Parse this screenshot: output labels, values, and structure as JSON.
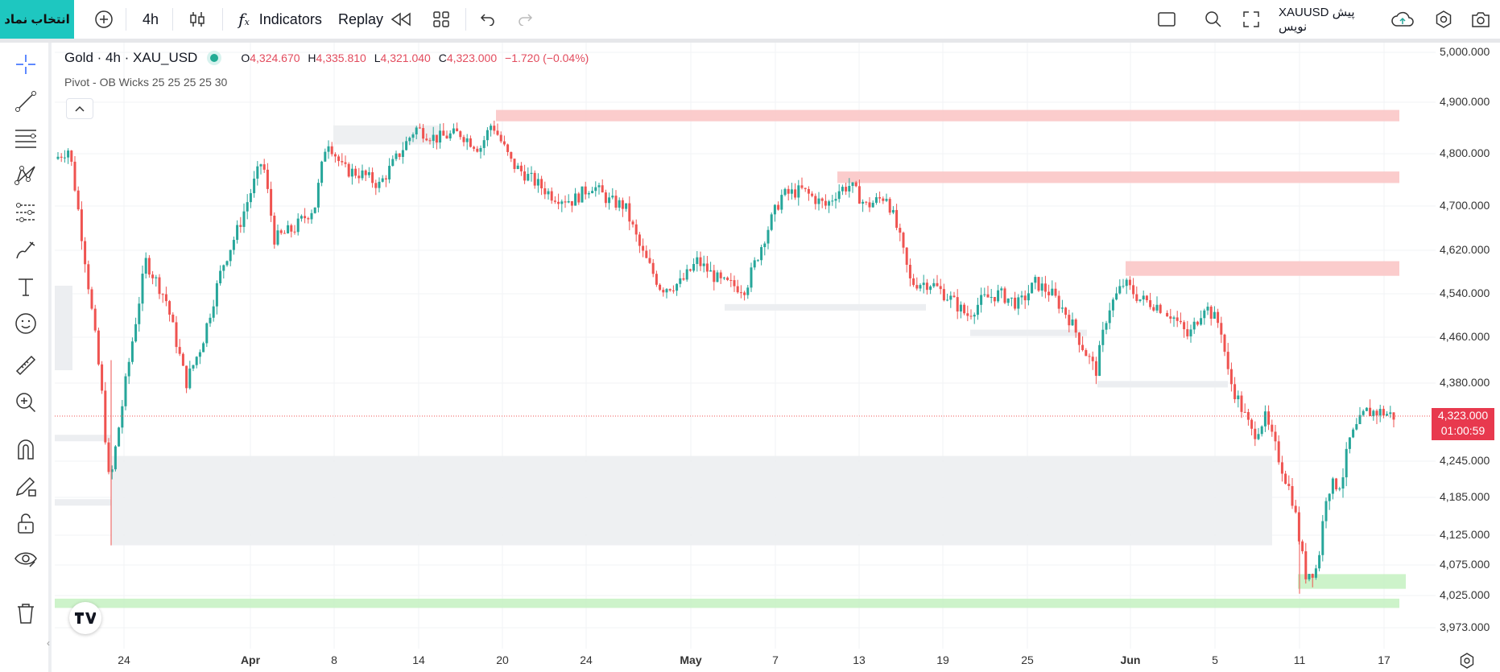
{
  "toolbar": {
    "symbol_button": "انتخاب نماد",
    "interval": "4h",
    "indicators_label": "Indicators",
    "replay_label": "Replay",
    "draft_label": "XAUUSD پیش نویس"
  },
  "legend": {
    "title": "Gold · 4h · XAU_USD",
    "open_key": "O",
    "open": "4,324.670",
    "high_key": "H",
    "high": "4,335.810",
    "low_key": "L",
    "low": "4,321.040",
    "close_key": "C",
    "close": "4,323.000",
    "change": "−1.720 (−0.04%)",
    "indicator": "Pivot - OB Wicks 25 25 25 25 30"
  },
  "current_price": {
    "price": "4,323.000",
    "countdown": "01:00:59"
  },
  "price_axis": [
    "5,000.000",
    "4,900.000",
    "4,800.000",
    "4,700.000",
    "4,620.000",
    "4,540.000",
    "4,460.000",
    "4,380.000",
    "4,245.000",
    "4,185.000",
    "4,125.000",
    "4,075.000",
    "4,025.000",
    "3,973.000"
  ],
  "time_axis": [
    "24",
    "Apr",
    "8",
    "14",
    "20",
    "24",
    "May",
    "7",
    "13",
    "19",
    "25",
    "Jun",
    "5",
    "11",
    "17"
  ],
  "colors": {
    "up": "#26a69a",
    "down": "#ef5350",
    "accent": "#1ec7c0",
    "supply_zone": "#fbc7c7",
    "demand_zone": "#c8f2c4",
    "ob_zone": "#eceef1"
  },
  "chart_data": {
    "type": "candlestick",
    "ylim": [
      3940,
      5020
    ],
    "price_ticks": [
      5000,
      4900,
      4800,
      4700,
      4620,
      4540,
      4460,
      4380,
      4245,
      4185,
      4125,
      4075,
      4025,
      3973
    ],
    "current_price": 4323.0,
    "zones": [
      {
        "kind": "supply",
        "top": 4885,
        "bottom": 4863
      },
      {
        "kind": "supply",
        "top": 4766,
        "bottom": 4744
      },
      {
        "kind": "supply",
        "top": 4600,
        "bottom": 4573
      },
      {
        "kind": "demand",
        "top": 4060,
        "bottom": 4036
      },
      {
        "kind": "demand",
        "top": 4020,
        "bottom": 4005
      },
      {
        "kind": "orderblock",
        "top": 4254,
        "bottom": 4108
      },
      {
        "kind": "orderblock",
        "top": 4855,
        "bottom": 4818
      }
    ]
  }
}
